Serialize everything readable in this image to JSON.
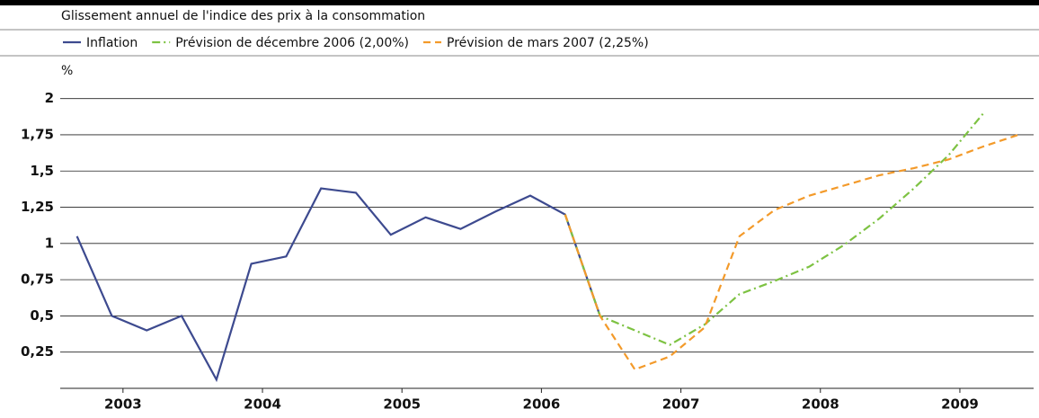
{
  "chart_data": {
    "type": "line",
    "title": "Glissement annuel de l'indice des prix à la consommation",
    "y_unit": "%",
    "xlim": [
      2003.05,
      2009.99
    ],
    "xticks": [
      {
        "value": 2003.5,
        "label": "2003"
      },
      {
        "value": 2004.5,
        "label": "2004"
      },
      {
        "value": 2005.5,
        "label": "2005"
      },
      {
        "value": 2006.5,
        "label": "2006"
      },
      {
        "value": 2007.5,
        "label": "2007"
      },
      {
        "value": 2008.5,
        "label": "2008"
      },
      {
        "value": 2009.5,
        "label": "2009"
      }
    ],
    "ylim": [
      0,
      2.06
    ],
    "yticks": [
      {
        "value": 0.25,
        "label": "0,25"
      },
      {
        "value": 0.5,
        "label": "0,5"
      },
      {
        "value": 0.75,
        "label": "0,75"
      },
      1,
      {
        "value": 1.25,
        "label": "1,25"
      },
      {
        "value": 1.5,
        "label": "1,5"
      },
      {
        "value": 1.75,
        "label": "1,75"
      },
      2
    ],
    "grid": true,
    "series": [
      {
        "name": "Inflation",
        "color": "#3d4a8f",
        "dash": "solid",
        "x": [
          2003.17,
          2003.42,
          2003.67,
          2003.92,
          2004.17,
          2004.42,
          2004.67,
          2004.92,
          2005.17,
          2005.42,
          2005.67,
          2005.92,
          2006.17,
          2006.42,
          2006.67,
          2006.92
        ],
        "values": [
          1.05,
          0.5,
          0.4,
          0.5,
          0.06,
          0.86,
          0.91,
          1.38,
          1.35,
          1.06,
          1.18,
          1.1,
          1.22,
          1.33,
          1.2,
          0.5
        ]
      },
      {
        "name": "Prévision de décembre 2006 (2,00%)",
        "color": "#7dc242",
        "dash": "dashdot",
        "x": [
          2006.67,
          2006.92,
          2007.17,
          2007.42,
          2007.67,
          2007.92,
          2008.17,
          2008.42,
          2008.67,
          2008.92,
          2009.17,
          2009.42,
          2009.67
        ],
        "values": [
          1.2,
          0.5,
          0.4,
          0.3,
          0.44,
          0.65,
          0.74,
          0.84,
          0.99,
          1.17,
          1.38,
          1.61,
          1.9
        ]
      },
      {
        "name": "Prévision de mars 2007 (2,25%)",
        "color": "#f39a2a",
        "dash": "dashed",
        "x": [
          2006.67,
          2006.92,
          2007.17,
          2007.42,
          2007.67,
          2007.92,
          2008.17,
          2008.42,
          2008.67,
          2008.92,
          2009.17,
          2009.42,
          2009.67,
          2009.92
        ],
        "values": [
          1.2,
          0.5,
          0.13,
          0.22,
          0.42,
          1.05,
          1.23,
          1.33,
          1.4,
          1.47,
          1.52,
          1.58,
          1.67,
          1.75
        ]
      }
    ]
  }
}
